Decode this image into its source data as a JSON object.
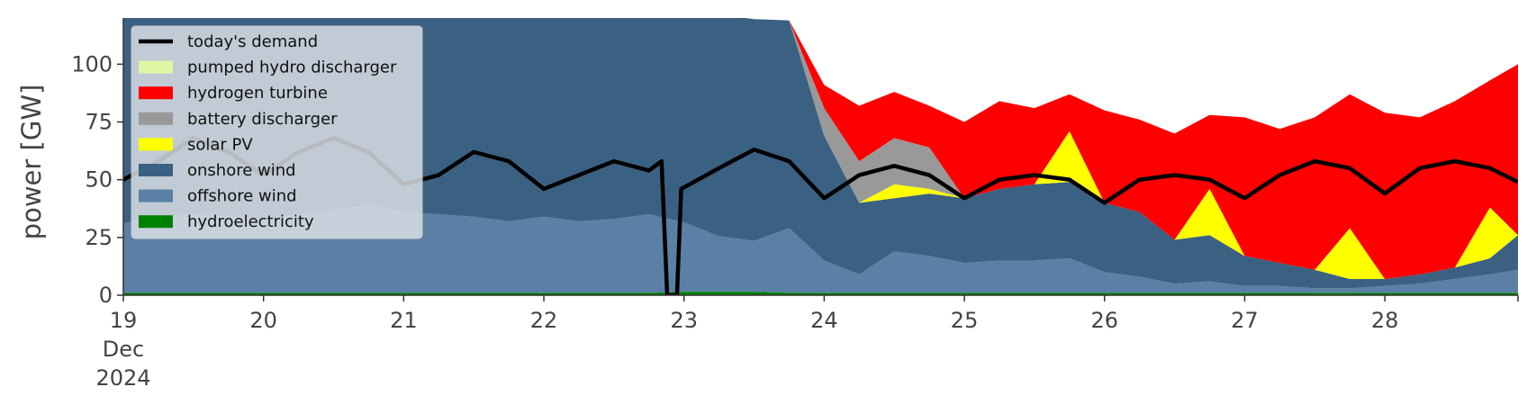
{
  "chart_data": {
    "type": "area",
    "title": "",
    "xlabel": "",
    "ylabel": "power [GW]",
    "ylim": [
      0,
      120
    ],
    "xlim": [
      0,
      9.95
    ],
    "x_unit": "days since 19 Dec 2024 00:00",
    "yticks": [
      0,
      25,
      50,
      75,
      100
    ],
    "xticks": [
      {
        "value": 0,
        "label": "19",
        "sub": [
          "Dec",
          "2024"
        ]
      },
      {
        "value": 1,
        "label": "20"
      },
      {
        "value": 2,
        "label": "21"
      },
      {
        "value": 3,
        "label": "22"
      },
      {
        "value": 4,
        "label": "23"
      },
      {
        "value": 5,
        "label": "24"
      },
      {
        "value": 6,
        "label": "25"
      },
      {
        "value": 7,
        "label": "26"
      },
      {
        "value": 8,
        "label": "27"
      },
      {
        "value": 9,
        "label": "28"
      }
    ],
    "grid": false,
    "legend": "top-left",
    "x": [
      0,
      0.25,
      0.5,
      0.75,
      1,
      1.25,
      1.5,
      1.75,
      2,
      2.25,
      2.5,
      2.75,
      3,
      3.25,
      3.5,
      3.75,
      4,
      4.25,
      4.5,
      4.75,
      5,
      5.25,
      5.5,
      5.75,
      6,
      6.25,
      6.5,
      6.75,
      7,
      7.25,
      7.5,
      7.75,
      8,
      8.25,
      8.5,
      8.75,
      9,
      9.25,
      9.5,
      9.75,
      9.95
    ],
    "series": [
      {
        "name": "hydroelectricity",
        "color": "#008000",
        "values": [
          1,
          1,
          1,
          1,
          1,
          1,
          1,
          1,
          1,
          1,
          1,
          1,
          1,
          1,
          1,
          1,
          1.5,
          1.5,
          1.5,
          1,
          1,
          1,
          1,
          1,
          1,
          1,
          1,
          1,
          1,
          1,
          1,
          1,
          1,
          1,
          1,
          1,
          1,
          1,
          1,
          1,
          1
        ]
      },
      {
        "name": "offshore wind",
        "color": "#5b80a5",
        "values": [
          30,
          33,
          34,
          33,
          32,
          34,
          36,
          38,
          35,
          34,
          33,
          31,
          33,
          31,
          32,
          34,
          30,
          24,
          22,
          28,
          14,
          8,
          18,
          16,
          13,
          14,
          14,
          15,
          9,
          7,
          4,
          5,
          3,
          3,
          2,
          2,
          3,
          4,
          6,
          8,
          10
        ]
      },
      {
        "name": "onshore wind",
        "color": "#3b6182",
        "values": [
          90,
          90,
          90,
          90,
          90,
          90,
          90,
          90,
          90,
          90,
          90,
          90,
          90,
          90,
          90,
          90,
          90,
          96,
          96,
          90,
          54,
          31,
          23,
          27,
          28,
          31,
          33,
          33,
          30,
          28,
          19,
          20,
          13,
          10,
          8,
          4,
          3,
          4,
          5,
          7,
          15
        ]
      },
      {
        "name": "solar PV",
        "color": "#ffff00",
        "values": [
          0,
          0,
          0,
          0,
          0,
          0,
          0,
          0,
          0,
          0,
          0,
          0,
          0,
          0,
          0,
          0,
          0,
          0,
          0,
          0,
          0,
          0,
          6,
          2,
          0,
          0,
          0,
          22,
          0,
          0,
          0,
          20,
          0,
          0,
          0,
          22,
          0,
          0,
          0,
          22,
          0
        ]
      },
      {
        "name": "battery discharger",
        "color": "#999999",
        "values": [
          0,
          0,
          0,
          0,
          0,
          0,
          0,
          0,
          0,
          0,
          0,
          0,
          0,
          0,
          0,
          0,
          0,
          0,
          0,
          0,
          12,
          18,
          20,
          18,
          0,
          0,
          0,
          0,
          0,
          0,
          0,
          0,
          0,
          0,
          0,
          0,
          0,
          0,
          0,
          0,
          0
        ]
      },
      {
        "name": "hydrogen turbine",
        "color": "#ff0000",
        "values": [
          0,
          0,
          0,
          0,
          0,
          0,
          0,
          0,
          0,
          0,
          0,
          0,
          0,
          0,
          0,
          0,
          0,
          0,
          0,
          0,
          10,
          24,
          20,
          18,
          33,
          38,
          33,
          16,
          40,
          40,
          46,
          32,
          60,
          58,
          66,
          58,
          72,
          68,
          72,
          55,
          74
        ]
      },
      {
        "name": "pumped hydro discharger",
        "color": "#ddf7a4",
        "values": [
          0,
          0,
          0,
          0,
          0,
          0,
          0,
          0,
          0,
          0,
          0,
          0,
          0,
          0,
          0,
          0,
          0,
          0,
          0,
          0,
          0,
          0,
          0,
          0,
          0,
          0,
          0,
          0,
          0,
          0,
          0,
          0,
          0,
          0,
          0,
          0,
          0,
          0,
          0,
          0,
          0
        ]
      }
    ],
    "demand": {
      "name": "today's demand",
      "color": "#000000",
      "x": [
        0,
        0.25,
        0.5,
        0.75,
        1,
        1.25,
        1.5,
        1.75,
        2,
        2.25,
        2.5,
        2.75,
        3,
        3.25,
        3.5,
        3.75,
        3.84,
        3.88,
        3.95,
        3.98,
        4.25,
        4.5,
        4.75,
        5,
        5.25,
        5.5,
        5.75,
        6,
        6.25,
        6.5,
        6.75,
        7,
        7.25,
        7.5,
        7.75,
        8,
        8.25,
        8.5,
        8.75,
        9,
        9.25,
        9.5,
        9.75,
        9.95
      ],
      "values": [
        50,
        58,
        68,
        62,
        52,
        62,
        68,
        62,
        48,
        52,
        62,
        58,
        46,
        52,
        58,
        54,
        58,
        0,
        0,
        46,
        55,
        63,
        58,
        42,
        52,
        56,
        52,
        42,
        50,
        52,
        50,
        40,
        50,
        52,
        50,
        42,
        52,
        58,
        55,
        44,
        55,
        58,
        55,
        49
      ]
    }
  },
  "legend_items": [
    {
      "label": "today's demand",
      "kind": "line",
      "color": "#000000"
    },
    {
      "label": "pumped hydro discharger",
      "kind": "patch",
      "color": "#ddf7a4"
    },
    {
      "label": "hydrogen turbine",
      "kind": "patch",
      "color": "#ff0000"
    },
    {
      "label": "battery discharger",
      "kind": "patch",
      "color": "#999999"
    },
    {
      "label": "solar PV",
      "kind": "patch",
      "color": "#ffff00"
    },
    {
      "label": "onshore wind",
      "kind": "patch",
      "color": "#3b6182"
    },
    {
      "label": "offshore wind",
      "kind": "patch",
      "color": "#5b80a5"
    },
    {
      "label": "hydroelectricity",
      "kind": "patch",
      "color": "#008000"
    }
  ]
}
